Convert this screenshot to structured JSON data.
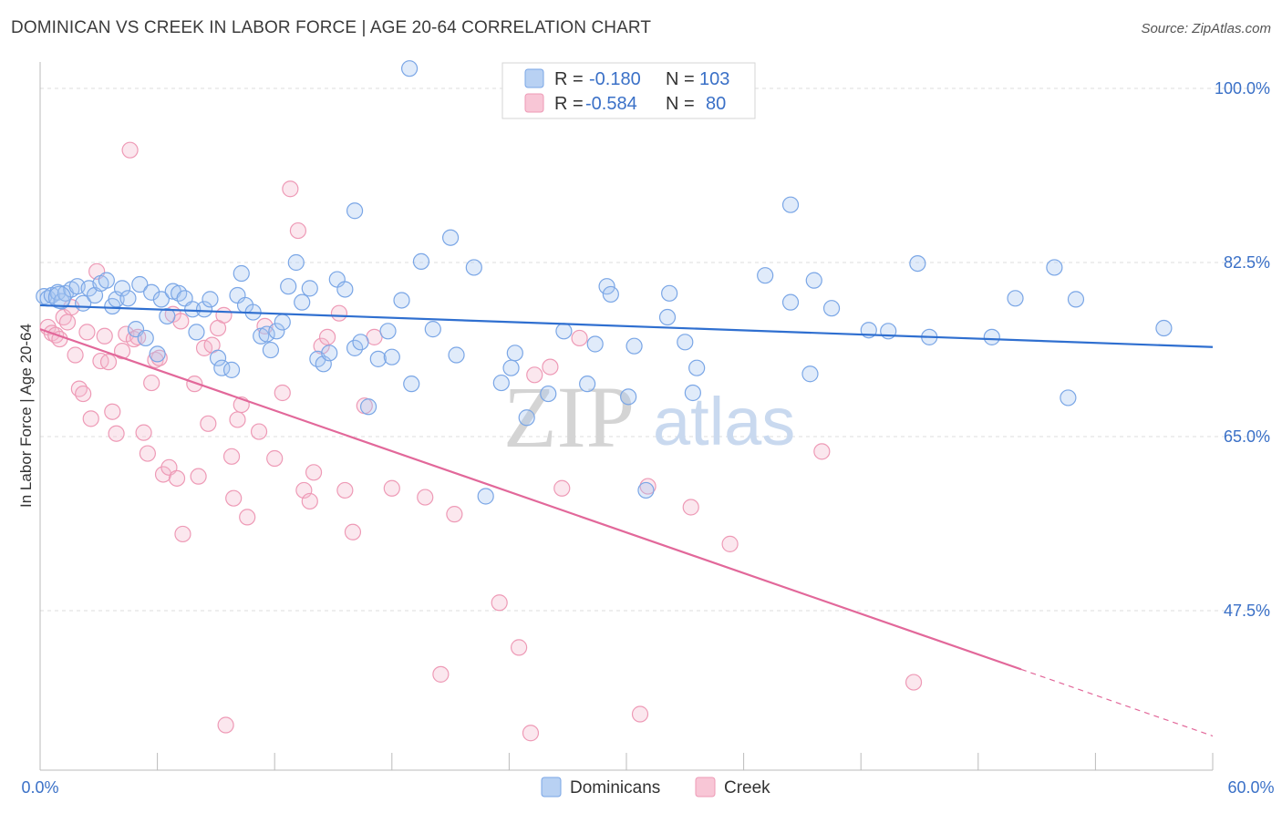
{
  "title": "DOMINICAN VS CREEK IN LABOR FORCE | AGE 20-64 CORRELATION CHART",
  "source": "Source: ZipAtlas.com",
  "watermark": {
    "zip": "ZIP",
    "atlas": "atlas"
  },
  "colors": {
    "dominicans": "#7aa6e6",
    "dominicans_fill": "rgba(167,199,240,0.35)",
    "dominicans_line": "#2f6fd0",
    "creek": "#ee9ab6",
    "creek_fill": "rgba(244,185,205,0.35)",
    "creek_line": "#e2689a",
    "tick_text": "#3a70c7",
    "grid": "#dddddd"
  },
  "legend": {
    "row1": {
      "r_label": "R = ",
      "r_value": "-0.180",
      "n_label": "N = ",
      "n_value": "103"
    },
    "row2": {
      "r_label": "R = ",
      "r_value": "-0.584",
      "n_label": "N = ",
      "n_value": "80"
    }
  },
  "chart_data": {
    "type": "scatter",
    "title": "DOMINICAN VS CREEK IN LABOR FORCE | AGE 20-64 CORRELATION CHART",
    "xlabel": "",
    "ylabel": "In Labor Force | Age 20-64",
    "xlim": [
      0,
      60
    ],
    "ylim": [
      29.5,
      102.5
    ],
    "x_tick_labels": [
      "0.0%",
      "60.0%"
    ],
    "y_ticks": [
      47.5,
      65.0,
      82.5,
      100.0
    ],
    "y_tick_labels": [
      "47.5%",
      "65.0%",
      "82.5%",
      "100.0%"
    ],
    "grid": true,
    "legend_position": "top-center",
    "series": [
      {
        "name": "Dominicans",
        "r": -0.18,
        "n": 103,
        "trend": {
          "x": [
            0,
            60
          ],
          "y": [
            78.2,
            74.0
          ]
        },
        "points": [
          [
            0.2,
            79.1
          ],
          [
            0.4,
            78.9
          ],
          [
            0.6,
            79.2
          ],
          [
            0.9,
            79.5
          ],
          [
            1.1,
            78.6
          ],
          [
            1.3,
            79.4
          ],
          [
            1.6,
            79.8
          ],
          [
            1.9,
            80.1
          ],
          [
            2.2,
            78.4
          ],
          [
            2.5,
            79.9
          ],
          [
            2.8,
            79.2
          ],
          [
            3.1,
            80.4
          ],
          [
            3.4,
            80.7
          ],
          [
            3.7,
            78.1
          ],
          [
            3.9,
            78.8
          ],
          [
            4.2,
            79.9
          ],
          [
            4.5,
            78.9
          ],
          [
            4.9,
            75.8
          ],
          [
            5.1,
            80.3
          ],
          [
            5.4,
            74.9
          ],
          [
            5.7,
            79.5
          ],
          [
            6.0,
            73.3
          ],
          [
            6.2,
            78.8
          ],
          [
            6.5,
            77.1
          ],
          [
            6.8,
            79.6
          ],
          [
            7.1,
            79.4
          ],
          [
            7.4,
            78.9
          ],
          [
            7.8,
            77.8
          ],
          [
            8.0,
            75.5
          ],
          [
            8.4,
            77.8
          ],
          [
            8.7,
            78.8
          ],
          [
            9.1,
            72.9
          ],
          [
            9.3,
            71.9
          ],
          [
            9.8,
            71.7
          ],
          [
            10.1,
            79.2
          ],
          [
            10.3,
            81.4
          ],
          [
            10.5,
            78.2
          ],
          [
            10.9,
            77.5
          ],
          [
            11.3,
            75.1
          ],
          [
            11.6,
            75.3
          ],
          [
            11.8,
            73.7
          ],
          [
            12.1,
            75.6
          ],
          [
            12.4,
            76.5
          ],
          [
            12.7,
            80.1
          ],
          [
            13.1,
            82.5
          ],
          [
            13.4,
            78.5
          ],
          [
            13.8,
            79.9
          ],
          [
            14.2,
            72.8
          ],
          [
            14.5,
            72.3
          ],
          [
            14.8,
            73.4
          ],
          [
            15.2,
            80.8
          ],
          [
            15.6,
            79.8
          ],
          [
            16.1,
            73.9
          ],
          [
            16.4,
            74.5
          ],
          [
            16.8,
            68.0
          ],
          [
            17.3,
            72.8
          ],
          [
            17.8,
            75.6
          ],
          [
            18.0,
            73.0
          ],
          [
            18.5,
            78.7
          ],
          [
            19.0,
            70.3
          ],
          [
            19.5,
            82.6
          ],
          [
            20.1,
            75.8
          ],
          [
            21.3,
            73.2
          ],
          [
            21.0,
            85.0
          ],
          [
            22.2,
            82.0
          ],
          [
            22.8,
            59.0
          ],
          [
            23.6,
            70.4
          ],
          [
            24.3,
            73.4
          ],
          [
            24.1,
            71.9
          ],
          [
            24.9,
            66.9
          ],
          [
            26.0,
            69.3
          ],
          [
            26.8,
            75.6
          ],
          [
            28.0,
            70.3
          ],
          [
            28.4,
            74.3
          ],
          [
            29.0,
            80.1
          ],
          [
            29.2,
            79.3
          ],
          [
            30.1,
            69.0
          ],
          [
            30.4,
            74.1
          ],
          [
            31.0,
            59.6
          ],
          [
            32.1,
            77.0
          ],
          [
            32.2,
            79.4
          ],
          [
            33.0,
            74.5
          ],
          [
            33.6,
            71.9
          ],
          [
            33.4,
            69.4
          ],
          [
            37.1,
            81.2
          ],
          [
            38.4,
            78.5
          ],
          [
            38.4,
            88.3
          ],
          [
            39.4,
            71.3
          ],
          [
            39.6,
            80.7
          ],
          [
            40.5,
            77.9
          ],
          [
            42.4,
            75.7
          ],
          [
            43.4,
            75.6
          ],
          [
            44.9,
            82.4
          ],
          [
            45.5,
            75.0
          ],
          [
            48.7,
            75.0
          ],
          [
            49.9,
            78.9
          ],
          [
            51.9,
            82.0
          ],
          [
            52.6,
            68.9
          ],
          [
            53.0,
            78.8
          ],
          [
            57.5,
            75.9
          ],
          [
            18.9,
            102.0
          ],
          [
            16.1,
            87.7
          ],
          [
            1.0,
            79.0
          ]
        ]
      },
      {
        "name": "Creek",
        "r": -0.584,
        "n": 80,
        "trend": {
          "x": [
            0,
            50.2
          ],
          "y": [
            75.8,
            41.6
          ]
        },
        "trend_dashed": {
          "x": [
            50.2,
            60
          ],
          "y": [
            41.6,
            34.9
          ]
        },
        "points": [
          [
            0.4,
            76.0
          ],
          [
            0.6,
            75.4
          ],
          [
            0.8,
            75.2
          ],
          [
            1.0,
            74.8
          ],
          [
            1.2,
            77.0
          ],
          [
            1.4,
            76.5
          ],
          [
            1.6,
            78.0
          ],
          [
            1.8,
            73.2
          ],
          [
            2.0,
            69.8
          ],
          [
            2.2,
            69.3
          ],
          [
            2.4,
            75.5
          ],
          [
            2.6,
            66.8
          ],
          [
            2.9,
            81.6
          ],
          [
            3.1,
            72.6
          ],
          [
            3.3,
            75.1
          ],
          [
            3.5,
            72.5
          ],
          [
            3.7,
            67.5
          ],
          [
            3.9,
            65.3
          ],
          [
            4.2,
            73.6
          ],
          [
            4.4,
            75.3
          ],
          [
            4.6,
            93.8
          ],
          [
            4.8,
            74.8
          ],
          [
            5.0,
            75.0
          ],
          [
            5.3,
            65.4
          ],
          [
            5.5,
            63.3
          ],
          [
            5.7,
            70.4
          ],
          [
            5.9,
            72.7
          ],
          [
            6.1,
            72.9
          ],
          [
            6.3,
            61.2
          ],
          [
            6.6,
            61.9
          ],
          [
            6.8,
            77.3
          ],
          [
            7.0,
            60.8
          ],
          [
            7.2,
            76.6
          ],
          [
            7.3,
            55.2
          ],
          [
            7.9,
            70.3
          ],
          [
            8.1,
            61.0
          ],
          [
            8.4,
            73.9
          ],
          [
            8.6,
            66.3
          ],
          [
            8.8,
            74.2
          ],
          [
            9.1,
            75.9
          ],
          [
            9.4,
            77.2
          ],
          [
            9.8,
            63.0
          ],
          [
            9.9,
            58.8
          ],
          [
            10.1,
            66.7
          ],
          [
            10.3,
            68.2
          ],
          [
            10.6,
            56.9
          ],
          [
            11.2,
            65.5
          ],
          [
            11.5,
            76.1
          ],
          [
            12.0,
            62.8
          ],
          [
            12.4,
            69.4
          ],
          [
            12.8,
            89.9
          ],
          [
            13.2,
            85.7
          ],
          [
            13.5,
            59.6
          ],
          [
            13.8,
            58.5
          ],
          [
            14.0,
            61.4
          ],
          [
            14.4,
            74.1
          ],
          [
            14.7,
            75.0
          ],
          [
            15.3,
            77.4
          ],
          [
            15.6,
            59.6
          ],
          [
            16.0,
            55.4
          ],
          [
            16.6,
            68.1
          ],
          [
            17.1,
            75.0
          ],
          [
            18.0,
            59.8
          ],
          [
            19.7,
            58.9
          ],
          [
            20.5,
            41.1
          ],
          [
            21.2,
            57.2
          ],
          [
            23.5,
            48.3
          ],
          [
            24.5,
            43.8
          ],
          [
            25.1,
            35.2
          ],
          [
            25.3,
            71.2
          ],
          [
            26.1,
            72.0
          ],
          [
            26.7,
            59.8
          ],
          [
            27.6,
            74.9
          ],
          [
            30.7,
            37.1
          ],
          [
            31.1,
            60.0
          ],
          [
            33.3,
            57.9
          ],
          [
            35.3,
            54.2
          ],
          [
            40.0,
            63.5
          ],
          [
            44.7,
            40.3
          ],
          [
            9.5,
            36.0
          ]
        ]
      }
    ]
  },
  "bottom_legend": {
    "item1": "Dominicans",
    "item2": "Creek"
  }
}
